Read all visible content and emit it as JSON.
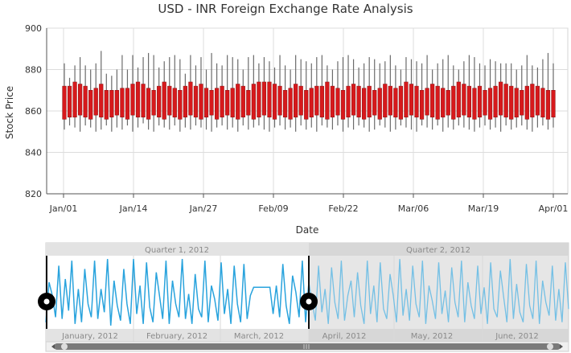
{
  "chart_data": {
    "type": "candlestick",
    "title": "USD - INR Foreign Exchange Rate Analysis",
    "xlabel": "Date",
    "ylabel": "Stock Price",
    "ylim": [
      820,
      900
    ],
    "yticks": [
      "820",
      "840",
      "860",
      "880",
      "900"
    ],
    "xticks": [
      "Jan/01",
      "Jan/14",
      "Jan/27",
      "Feb/09",
      "Feb/22",
      "Mar/06",
      "Mar/19",
      "Apr/01"
    ],
    "grid": true,
    "colors": {
      "candle": "#d7191c",
      "wick": "#6b6b6b",
      "navigator_line": "#29a3dd"
    },
    "series": [
      {
        "low": [
          851,
          853,
          852,
          850,
          853,
          852,
          850,
          851,
          853,
          850,
          852,
          851,
          853,
          850,
          852,
          854,
          851,
          850,
          853,
          852,
          851,
          853,
          850,
          852,
          851,
          853,
          852,
          851,
          850,
          852,
          853,
          851,
          852,
          850,
          853,
          851,
          852,
          853,
          851,
          850,
          852,
          853,
          851,
          852,
          850,
          853,
          851,
          852,
          850,
          853,
          852,
          851,
          853,
          850,
          852,
          851,
          853,
          852,
          850,
          851,
          853,
          852,
          850,
          851,
          853,
          852,
          851,
          850,
          853,
          852,
          851,
          853,
          850,
          852,
          851,
          853,
          852,
          851,
          850,
          852,
          853,
          851,
          852,
          850,
          853,
          851,
          852,
          853,
          851,
          850,
          852,
          853,
          851,
          852
        ],
        "open": [
          856,
          857,
          857,
          858,
          857,
          856,
          858,
          857,
          856,
          857,
          858,
          857,
          856,
          858,
          857,
          857,
          856,
          858,
          857,
          856,
          858,
          857,
          856,
          857,
          858,
          857,
          856,
          857,
          858,
          856,
          857,
          858,
          857,
          856,
          857,
          858,
          856,
          857,
          858,
          857,
          856,
          858,
          857,
          856,
          857,
          858,
          856,
          857,
          858,
          857,
          856,
          857,
          858,
          856,
          857,
          858,
          857,
          856,
          857,
          858,
          856,
          857,
          858,
          857,
          856,
          857,
          858,
          857,
          856,
          858,
          857,
          856,
          857,
          858,
          856,
          857,
          858,
          857,
          856,
          857,
          858,
          856,
          857,
          858,
          857,
          856,
          857,
          858,
          856,
          857,
          858,
          857,
          856,
          857
        ],
        "close": [
          872,
          872,
          874,
          873,
          872,
          870,
          871,
          873,
          870,
          870,
          870,
          871,
          871,
          873,
          874,
          873,
          871,
          870,
          872,
          874,
          872,
          871,
          870,
          872,
          874,
          872,
          873,
          871,
          870,
          871,
          872,
          870,
          871,
          873,
          872,
          870,
          873,
          874,
          874,
          874,
          873,
          872,
          870,
          871,
          873,
          872,
          870,
          871,
          872,
          872,
          874,
          872,
          871,
          870,
          872,
          873,
          872,
          871,
          872,
          870,
          871,
          873,
          872,
          871,
          872,
          874,
          873,
          872,
          870,
          871,
          873,
          872,
          871,
          870,
          872,
          874,
          873,
          872,
          871,
          872,
          870,
          871,
          872,
          874,
          873,
          872,
          871,
          870,
          872,
          873,
          872,
          871,
          870,
          870
        ],
        "high": [
          883,
          876,
          882,
          886,
          882,
          880,
          883,
          889,
          878,
          877,
          880,
          887,
          880,
          887,
          881,
          886,
          888,
          887,
          881,
          884,
          886,
          887,
          885,
          878,
          887,
          882,
          886,
          880,
          888,
          883,
          882,
          887,
          886,
          885,
          880,
          886,
          887,
          883,
          886,
          884,
          881,
          887,
          882,
          880,
          887,
          885,
          884,
          883,
          886,
          887,
          882,
          880,
          884,
          886,
          887,
          885,
          881,
          883,
          886,
          885,
          883,
          884,
          887,
          882,
          880,
          886,
          885,
          884,
          883,
          887,
          880,
          883,
          885,
          887,
          882,
          880,
          884,
          887,
          886,
          883,
          882,
          885,
          884,
          883,
          883,
          883,
          880,
          882,
          887,
          882,
          881,
          885,
          888,
          883
        ]
      }
    ],
    "navigator": {
      "values": [
        850,
        874,
        866,
        853,
        884,
        852,
        876,
        857,
        887,
        849,
        870,
        850,
        882,
        861,
        853,
        887,
        852,
        870,
        856,
        888,
        848,
        875,
        860,
        851,
        882,
        861,
        849,
        888,
        855,
        872,
        849,
        886,
        859,
        850,
        880,
        866,
        852,
        887,
        849,
        875,
        861,
        853,
        888,
        852,
        867,
        849,
        879,
        858,
        853,
        887,
        850,
        872,
        864,
        851,
        886,
        855,
        870,
        849,
        884,
        861,
        850,
        885,
        852,
        866,
        871,
        871,
        871,
        871,
        871,
        871,
        855,
        872,
        853,
        885,
        860,
        849,
        878,
        868,
        853,
        887,
        850,
        874,
        862,
        851,
        884,
        856,
        870,
        849,
        883,
        862,
        852,
        887,
        851,
        866,
        875,
        853,
        880,
        860,
        849,
        887,
        855,
        872,
        850,
        886,
        858,
        852,
        879,
        866,
        850,
        888,
        854,
        870,
        851,
        884,
        861,
        853,
        887,
        849,
        872,
        863,
        852,
        886,
        855,
        869,
        850,
        883,
        862,
        853,
        887,
        850,
        874,
        860,
        852,
        884,
        855,
        871,
        849,
        886,
        858,
        853,
        881,
        865,
        850,
        888,
        852,
        873,
        856,
        850,
        885,
        860,
        852,
        887,
        849,
        875,
        862,
        854,
        884,
        851,
        870,
        850,
        886,
        858
      ],
      "quarters": [
        "Quarter 1, 2012",
        "Quarter 2, 2012"
      ],
      "months": [
        "January, 2012",
        "February, 2012",
        "March, 2012",
        "April, 2012",
        "May, 2012",
        "June, 2012"
      ]
    }
  }
}
